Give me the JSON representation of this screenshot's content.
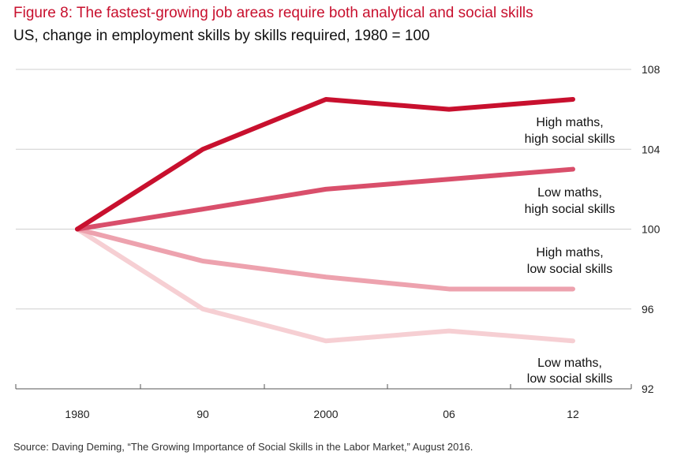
{
  "header": {
    "title": "Figure 8: The fastest-growing job areas require both analytical and social skills",
    "subtitle": "US, change in employment skills by skills required, 1980 = 100"
  },
  "footer": {
    "source": "Source: Daving Deming, “The Growing Importance of Social Skills in the Labor Market,” August 2016."
  },
  "chart_data": {
    "type": "line",
    "x": [
      1980,
      1990,
      2000,
      2006,
      2012
    ],
    "x_tick_labels": [
      "1980",
      "90",
      "2000",
      "06",
      "12"
    ],
    "y_ticks": [
      92,
      96,
      100,
      104,
      108
    ],
    "ylim": [
      92,
      108
    ],
    "y_axis_position": "right",
    "grid": "horizontal",
    "series": [
      {
        "name": "High maths, high social skills",
        "label_lines": [
          "High maths,",
          "high social skills"
        ],
        "color": "#c8102e",
        "values": [
          100,
          104.0,
          106.5,
          106.0,
          106.5
        ]
      },
      {
        "name": "Low maths, high social skills",
        "label_lines": [
          "Low maths,",
          "high social skills"
        ],
        "color": "#d94f6b",
        "values": [
          100,
          101.0,
          102.0,
          102.5,
          103.0
        ]
      },
      {
        "name": "High maths, low social skills",
        "label_lines": [
          "High maths,",
          "low social skills"
        ],
        "color": "#eda2ae",
        "values": [
          100,
          98.4,
          97.6,
          97.0,
          97.0
        ]
      },
      {
        "name": "Low maths, low social skills",
        "label_lines": [
          "Low maths,",
          "low social skills"
        ],
        "color": "#f6cfd3",
        "values": [
          100,
          96.0,
          94.4,
          94.9,
          94.4
        ]
      }
    ]
  }
}
